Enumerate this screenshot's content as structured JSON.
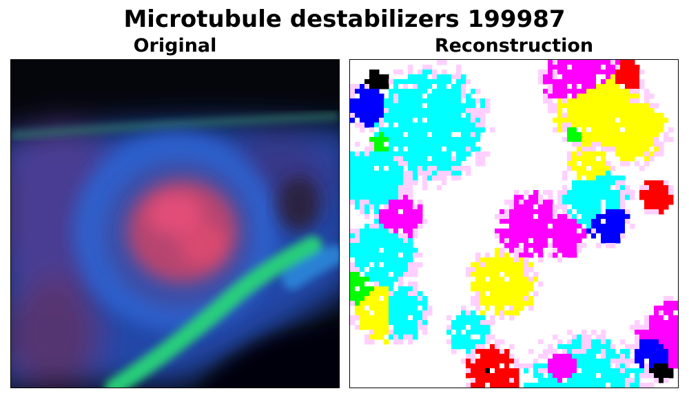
{
  "figure": {
    "title": "Microtubule destabilizers 199987"
  },
  "panels": [
    {
      "title": "Original"
    },
    {
      "title": "Reconstruction"
    }
  ],
  "colors": {
    "background": "#ffffff",
    "border": "#000000",
    "original_dark": "#06070d",
    "original_blue": "#2a55c8",
    "original_red": "#d8466e",
    "original_green": "#26e07a",
    "recon_cyan": "#00ffff",
    "recon_magenta": "#ff00ff",
    "recon_yellow": "#ffff00",
    "recon_red": "#ff0000",
    "recon_blue": "#0000ff",
    "recon_green": "#00ff00",
    "recon_black": "#000000"
  }
}
